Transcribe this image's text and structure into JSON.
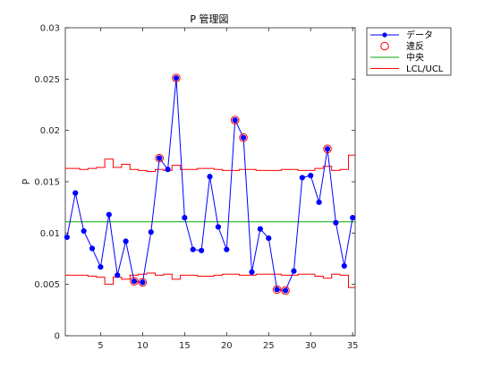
{
  "chart_data": {
    "type": "line",
    "title": "P 管理図",
    "xlabel": "",
    "ylabel": "P",
    "xlim": [
      0.8,
      35.3
    ],
    "ylim": [
      0,
      0.03
    ],
    "xticks": [
      5,
      10,
      15,
      20,
      25,
      30,
      35
    ],
    "yticks": [
      0,
      0.005,
      0.01,
      0.015,
      0.02,
      0.025,
      0.03
    ],
    "ytick_labels": [
      "0",
      "0.005",
      "0.01",
      "0.015",
      "0.02",
      "0.025",
      "0.03"
    ],
    "grid": false,
    "legend_position": "outside-top-right",
    "x": [
      1,
      2,
      3,
      4,
      5,
      6,
      7,
      8,
      9,
      10,
      11,
      12,
      13,
      14,
      15,
      16,
      17,
      18,
      19,
      20,
      21,
      22,
      23,
      24,
      25,
      26,
      27,
      28,
      29,
      30,
      31,
      32,
      33,
      34,
      35
    ],
    "series": [
      {
        "name": "データ",
        "color": "#0000ff",
        "style": "line-with-dot-markers",
        "values": [
          0.0096,
          0.0139,
          0.0102,
          0.0085,
          0.0067,
          0.0118,
          0.0059,
          0.0092,
          0.0053,
          0.0052,
          0.0101,
          0.0173,
          0.0162,
          0.0251,
          0.0115,
          0.0084,
          0.0083,
          0.0155,
          0.0106,
          0.0084,
          0.021,
          0.0193,
          0.0062,
          0.0104,
          0.0095,
          0.0045,
          0.0044,
          0.0063,
          0.0154,
          0.0156,
          0.013,
          0.0182,
          0.011,
          0.0068,
          0.0115
        ]
      },
      {
        "name": "違反",
        "color": "#ff0000",
        "style": "open-circle-markers",
        "x": [
          9,
          10,
          12,
          14,
          21,
          22,
          26,
          27,
          32
        ],
        "values": [
          0.0053,
          0.0052,
          0.0173,
          0.0251,
          0.021,
          0.0193,
          0.0045,
          0.0044,
          0.0182
        ]
      },
      {
        "name": "中央",
        "color": "#00aa00",
        "style": "line",
        "values": [
          0.0111,
          0.0111,
          0.0111,
          0.0111,
          0.0111,
          0.0111,
          0.0111,
          0.0111,
          0.0111,
          0.0111,
          0.0111,
          0.0111,
          0.0111,
          0.0111,
          0.0111,
          0.0111,
          0.0111,
          0.0111,
          0.0111,
          0.0111,
          0.0111,
          0.0111,
          0.0111,
          0.0111,
          0.0111,
          0.0111,
          0.0111,
          0.0111,
          0.0111,
          0.0111,
          0.0111,
          0.0111,
          0.0111,
          0.0111,
          0.0111
        ]
      },
      {
        "name": "LCL/UCL",
        "color": "#ff0000",
        "style": "stairs",
        "ucl": [
          0.0163,
          0.0163,
          0.0162,
          0.0163,
          0.0164,
          0.0172,
          0.0164,
          0.0167,
          0.0162,
          0.0161,
          0.016,
          0.0162,
          0.0161,
          0.0166,
          0.0162,
          0.0162,
          0.0163,
          0.0163,
          0.0162,
          0.0161,
          0.0161,
          0.0162,
          0.0162,
          0.0161,
          0.0161,
          0.0161,
          0.0162,
          0.0162,
          0.0161,
          0.0161,
          0.0163,
          0.0165,
          0.0161,
          0.0162,
          0.0176
        ],
        "lcl": [
          0.0059,
          0.0059,
          0.0059,
          0.0058,
          0.0057,
          0.005,
          0.0057,
          0.0055,
          0.0059,
          0.006,
          0.0061,
          0.0059,
          0.006,
          0.0055,
          0.0059,
          0.0059,
          0.0058,
          0.0058,
          0.0059,
          0.006,
          0.006,
          0.0059,
          0.0059,
          0.006,
          0.006,
          0.006,
          0.0059,
          0.0059,
          0.006,
          0.006,
          0.0058,
          0.0056,
          0.006,
          0.0059,
          0.0047
        ]
      }
    ]
  }
}
